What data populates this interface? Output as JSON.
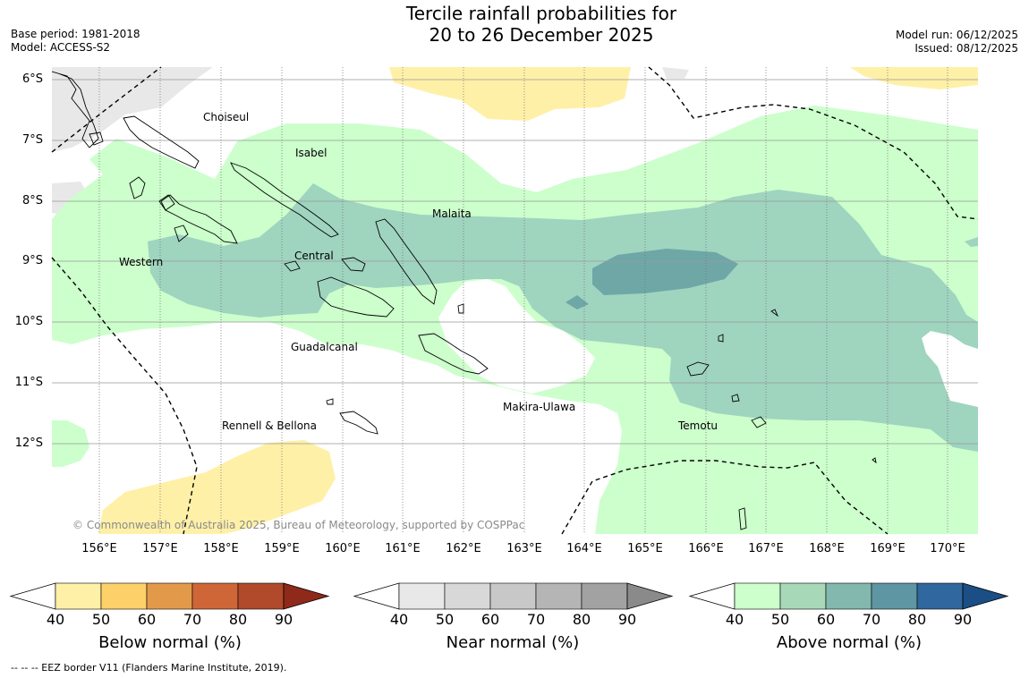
{
  "title": {
    "line1": "Tercile rainfall probabilities for",
    "line2": "20 to 26 December 2025"
  },
  "meta_left": {
    "base_period": "Base period: 1981-2018",
    "model": "Model: ACCESS-S2"
  },
  "meta_right": {
    "model_run": "Model run: 06/12/2025",
    "issued": "Issued: 08/12/2025"
  },
  "map": {
    "latitude_labels": [
      "6°S",
      "7°S",
      "8°S",
      "9°S",
      "10°S",
      "11°S",
      "12°S"
    ],
    "longitude_labels": [
      "156°E",
      "157°E",
      "158°E",
      "159°E",
      "160°E",
      "161°E",
      "162°E",
      "163°E",
      "164°E",
      "165°E",
      "166°E",
      "167°E",
      "168°E",
      "169°E",
      "170°E"
    ],
    "places": [
      "Choiseul",
      "Isabel",
      "Malaita",
      "Western",
      "Central",
      "Guadalcanal",
      "Makira-Ulawa",
      "Rennell & Bellona",
      "Temotu"
    ],
    "credit": "© Commonwealth of Australia 2025, Bureau of Meteorology, supported by COSPPac"
  },
  "colorbars": {
    "ticks": [
      "40",
      "50",
      "60",
      "70",
      "80",
      "90"
    ],
    "below": {
      "title": "Below normal (%)",
      "colors": [
        "#fff0a8",
        "#fed06a",
        "#e29a4a",
        "#cf6638",
        "#b04a2a",
        "#8f2a1a"
      ]
    },
    "near": {
      "title": "Near normal (%)",
      "colors": [
        "#e8e8e8",
        "#d8d8d8",
        "#c8c8c8",
        "#b5b5b5",
        "#a2a2a2",
        "#8a8a8a"
      ]
    },
    "above": {
      "title": "Above normal (%)",
      "colors": [
        "#ccffcc",
        "#a7d8b8",
        "#82b8ad",
        "#5f96a3",
        "#2f679e",
        "#1a4e85"
      ]
    }
  },
  "footer": "-- -- -- EEZ border V11 (Flanders Marine Institute, 2019)."
}
